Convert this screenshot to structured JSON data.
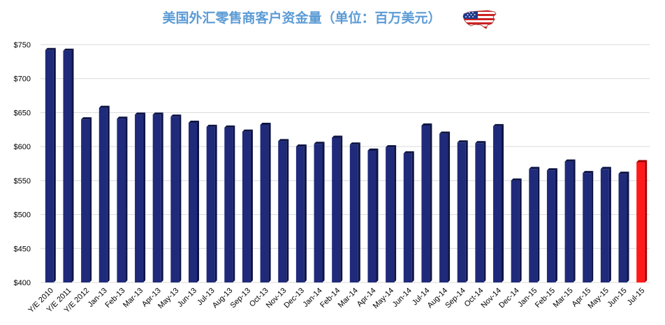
{
  "chart_data": {
    "type": "bar",
    "title": "美国外汇零售商客户资金量（单位：百万美元）",
    "categories": [
      "Y/E 2010",
      "Y/E 2011",
      "Y/E 2012",
      "Jan-13",
      "Feb-13",
      "Mar-13",
      "Apr-13",
      "May-13",
      "Jun-13",
      "Jul-13",
      "Aug-13",
      "Sep-13",
      "Oct-13",
      "Nov-13",
      "Dec-13",
      "Jan-14",
      "Feb-14",
      "Mar-14",
      "Apr-14",
      "May-14",
      "Jun-14",
      "Jul-14",
      "Aug-14",
      "Sep-14",
      "Oct-14",
      "Nov-14",
      "Dec-14",
      "Jan-15",
      "Feb-15",
      "Mar-15",
      "Apr-15",
      "May-15",
      "Jun-15",
      "Jul-15"
    ],
    "values": [
      742,
      741,
      640,
      657,
      641,
      647,
      647,
      644,
      635,
      629,
      628,
      622,
      632,
      608,
      600,
      604,
      613,
      603,
      594,
      599,
      590,
      631,
      619,
      606,
      605,
      630,
      550,
      567,
      565,
      578,
      561,
      567,
      560,
      577
    ],
    "ylim": [
      400,
      750
    ],
    "yticks": [
      "$400",
      "$450",
      "$500",
      "$550",
      "$600",
      "$650",
      "$700",
      "$750"
    ],
    "ytick_values": [
      400,
      450,
      500,
      550,
      600,
      650,
      700,
      750
    ],
    "grid": true,
    "legend": "none",
    "colors": {
      "bar": "#1f2a7a",
      "bar_side": "#0d1445",
      "highlight": "#ff1a1a",
      "highlight_side": "#a00000",
      "title": "#5b9bd5"
    },
    "highlight_index": 33
  },
  "icons": {
    "flag": "us-flag-map-icon"
  }
}
